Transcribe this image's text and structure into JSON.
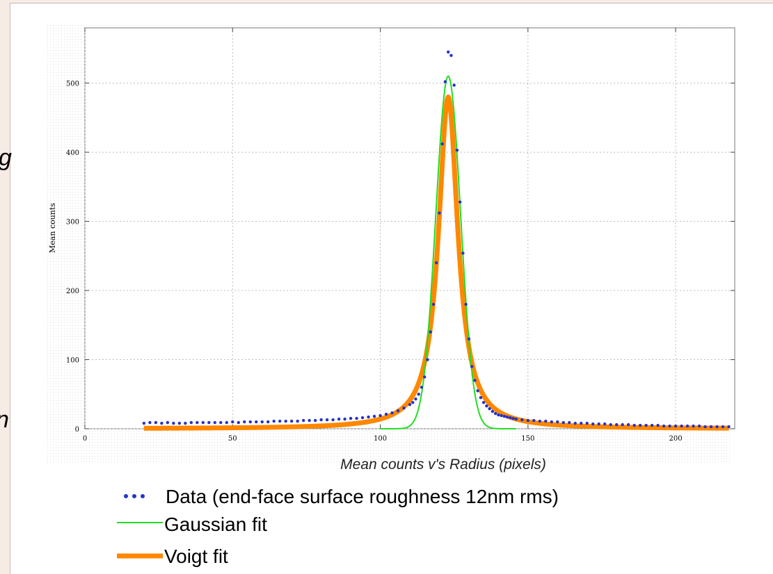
{
  "chart_data": {
    "type": "scatter",
    "xlabel": "Mean counts v's Radius (pixels)",
    "ylabel": "Mean counts",
    "xlim": [
      0,
      220
    ],
    "ylim": [
      0,
      580
    ],
    "xticks": [
      0,
      50,
      100,
      150,
      200
    ],
    "yticks": [
      0,
      100,
      200,
      300,
      400,
      500
    ],
    "grid": true,
    "legend_position": "bottom",
    "colors": {
      "data": "#2233cc",
      "gaussian": "#22dd22",
      "voigt": "#ff8800"
    },
    "series": [
      {
        "name": "Data (end-face surface roughness 12nm rms)",
        "kind": "points",
        "x": [
          20,
          22,
          24,
          26,
          28,
          30,
          32,
          34,
          36,
          38,
          40,
          42,
          44,
          46,
          48,
          50,
          52,
          54,
          56,
          58,
          60,
          62,
          64,
          66,
          68,
          70,
          72,
          74,
          76,
          78,
          80,
          82,
          84,
          86,
          88,
          90,
          92,
          94,
          96,
          98,
          100,
          102,
          104,
          106,
          108,
          110,
          111,
          112,
          113,
          114,
          115,
          116,
          117,
          118,
          119,
          120,
          121,
          122,
          123,
          124,
          125,
          126,
          127,
          128,
          129,
          130,
          131,
          132,
          133,
          134,
          135,
          136,
          137,
          138,
          139,
          140,
          141,
          142,
          143,
          144,
          145,
          146,
          148,
          150,
          152,
          154,
          156,
          158,
          160,
          162,
          164,
          166,
          168,
          170,
          172,
          174,
          176,
          178,
          180,
          182,
          184,
          186,
          188,
          190,
          192,
          194,
          196,
          198,
          200,
          202,
          204,
          206,
          208,
          210,
          212,
          214,
          216,
          218
        ],
        "y": [
          8,
          9,
          9,
          8,
          9,
          8,
          8,
          8,
          9,
          9,
          9,
          9,
          9,
          9,
          9,
          10,
          9,
          10,
          10,
          10,
          10,
          10,
          11,
          11,
          11,
          11,
          11,
          12,
          12,
          12,
          13,
          13,
          13,
          14,
          14,
          15,
          15,
          16,
          17,
          18,
          19,
          21,
          23,
          26,
          30,
          35,
          38,
          43,
          50,
          60,
          75,
          100,
          140,
          180,
          240,
          312,
          412,
          502,
          545,
          540,
          497,
          403,
          328,
          254,
          180,
          130,
          90,
          70,
          55,
          45,
          38,
          33,
          29,
          25,
          22,
          20,
          19,
          18,
          17,
          16,
          15,
          14,
          13,
          12,
          12,
          11,
          11,
          10,
          10,
          9,
          9,
          8,
          8,
          8,
          7,
          7,
          7,
          6,
          6,
          6,
          6,
          5,
          5,
          5,
          5,
          5,
          4,
          4,
          4,
          4,
          4,
          4,
          4,
          3,
          3,
          3,
          3,
          3
        ]
      },
      {
        "name": "Gaussian fit",
        "kind": "line",
        "model": "gaussian",
        "center": 123,
        "amplitude": 510,
        "sigma": 4.2
      },
      {
        "name": "Voigt fit",
        "kind": "line",
        "model": "lorentzian",
        "center": 123,
        "amplitude": 480,
        "hwhm": 4.0,
        "x_range": [
          20,
          218
        ]
      }
    ]
  },
  "page_fragments": {
    "left_a": "g",
    "left_b": "n"
  }
}
